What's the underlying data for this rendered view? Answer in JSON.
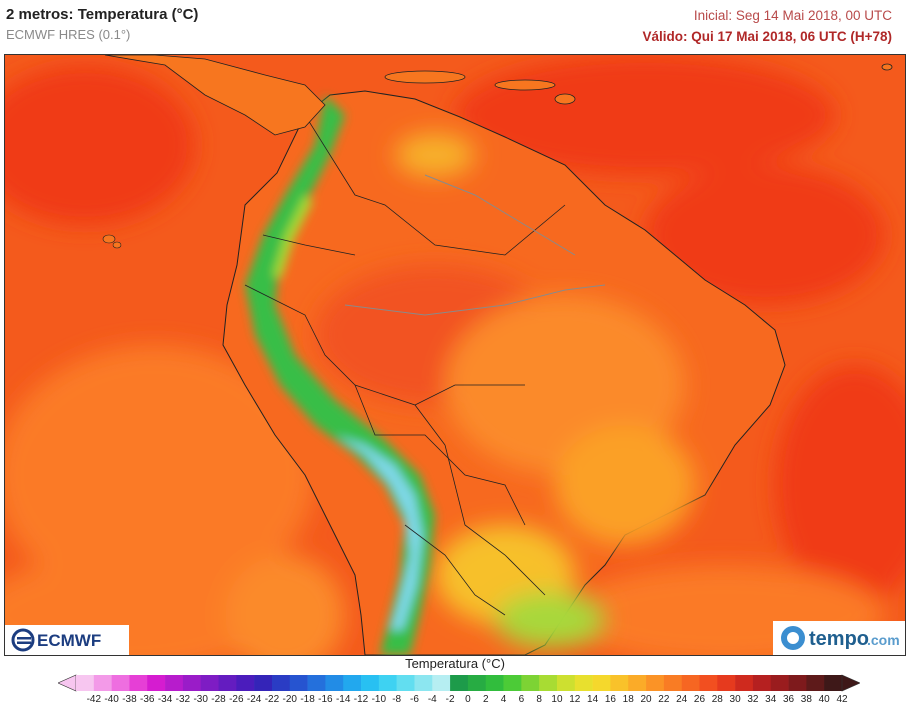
{
  "header": {
    "title": "2 metros: Temperatura (°C)",
    "model": "ECMWF HRES (0.1°)",
    "initial": "Inicial: Seg 14 Mai 2018, 00 UTC",
    "valid": "Válido: Qui 17 Mai 2018, 06 UTC (H+78)"
  },
  "map": {
    "region": "South America",
    "variable": "2 m temperature",
    "colors": {
      "warm": "#f45a1c",
      "hot": "#f03a12",
      "mild": "#fb8a2a",
      "highland": "#f9c02a",
      "cool": "#a8d83a",
      "mountain": "#3cc24a",
      "cold": "#7fd8e8"
    }
  },
  "logos": {
    "left": "ECMWF",
    "right_main": "tempo",
    "right_suffix": ".com"
  },
  "colorbar": {
    "title": "Temperatura (°C)",
    "ticks": [
      "-42",
      "-40",
      "-38",
      "-36",
      "-34",
      "-32",
      "-30",
      "-28",
      "-26",
      "-24",
      "-22",
      "-20",
      "-18",
      "-16",
      "-14",
      "-12",
      "-10",
      "-8",
      "-6",
      "-4",
      "-2",
      "0",
      "2",
      "4",
      "6",
      "8",
      "10",
      "12",
      "14",
      "16",
      "18",
      "20",
      "22",
      "24",
      "26",
      "28",
      "30",
      "32",
      "34",
      "36",
      "38",
      "40",
      "42"
    ],
    "colors": [
      "#f7c6f0",
      "#f39ae8",
      "#ee6ee0",
      "#e63fd6",
      "#d51cd0",
      "#b71ccc",
      "#9a1cc8",
      "#7e1cc4",
      "#641cc0",
      "#4b1cbc",
      "#3424b8",
      "#2a3cc4",
      "#2654d0",
      "#2470dc",
      "#228ce6",
      "#22a8ee",
      "#28c0f2",
      "#3ed2f2",
      "#62def0",
      "#8ce6f0",
      "#b6eef2",
      "#1d9b4a",
      "#27ac43",
      "#31bd3d",
      "#4ccb37",
      "#7dd334",
      "#a8dc33",
      "#cde030",
      "#e8e02e",
      "#f5d82c",
      "#f9c22a",
      "#fbab28",
      "#fb9326",
      "#f97c24",
      "#f66622",
      "#f24f20",
      "#e63a1e",
      "#cf2a1e",
      "#b52020",
      "#9a1c1e",
      "#7e1a1c",
      "#5e1a1a",
      "#3e1818"
    ]
  }
}
